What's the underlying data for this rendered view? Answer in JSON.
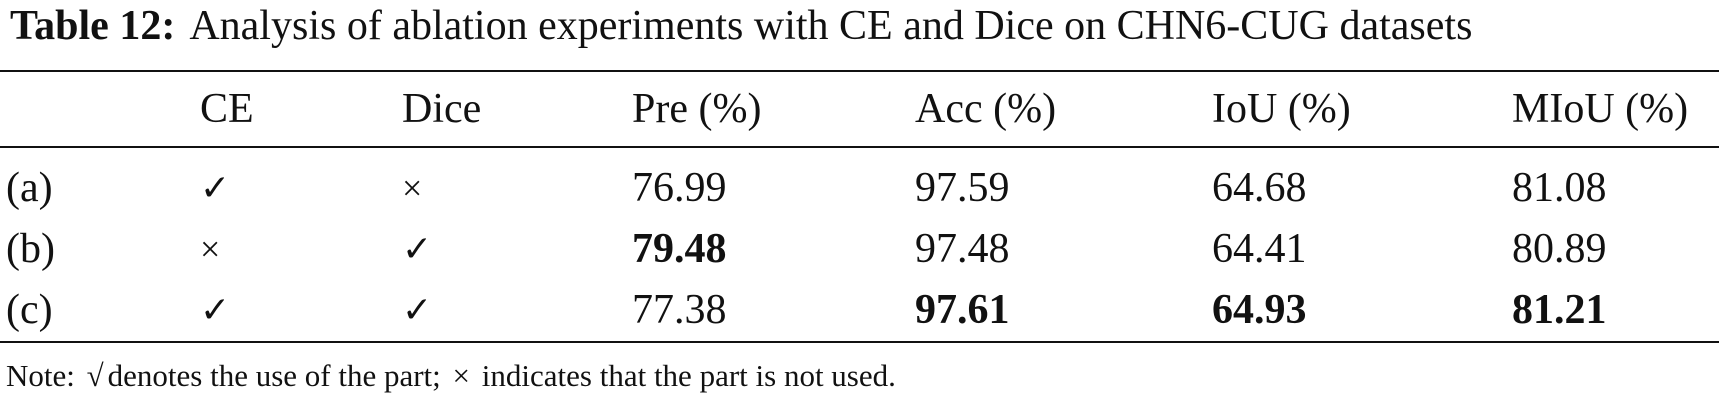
{
  "caption": {
    "label": "Table 12:",
    "text": "Analysis of ablation experiments with CE and Dice on CHN6-CUG datasets"
  },
  "table": {
    "headers": [
      "",
      "CE",
      "Dice",
      "Pre (%)",
      "Acc (%)",
      "IoU (%)",
      "MIoU (%)"
    ],
    "rows": [
      {
        "cells": [
          "(a)",
          "✓",
          "×",
          "76.99",
          "97.59",
          "64.68",
          "81.08"
        ],
        "bold": [
          false,
          false,
          false,
          false,
          false,
          false,
          false
        ]
      },
      {
        "cells": [
          "(b)",
          "×",
          "✓",
          "79.48",
          "97.48",
          "64.41",
          "80.89"
        ],
        "bold": [
          false,
          false,
          false,
          true,
          false,
          false,
          false
        ]
      },
      {
        "cells": [
          "(c)",
          "✓",
          "✓",
          "77.38",
          "97.61",
          "64.93",
          "81.21"
        ],
        "bold": [
          false,
          false,
          false,
          false,
          true,
          true,
          true
        ]
      }
    ]
  },
  "note": {
    "prefix": "Note:",
    "check_symbol": "√",
    "check_text": "denotes the use of the part;",
    "cross_symbol": "×",
    "cross_text": "indicates that the part is not used."
  }
}
